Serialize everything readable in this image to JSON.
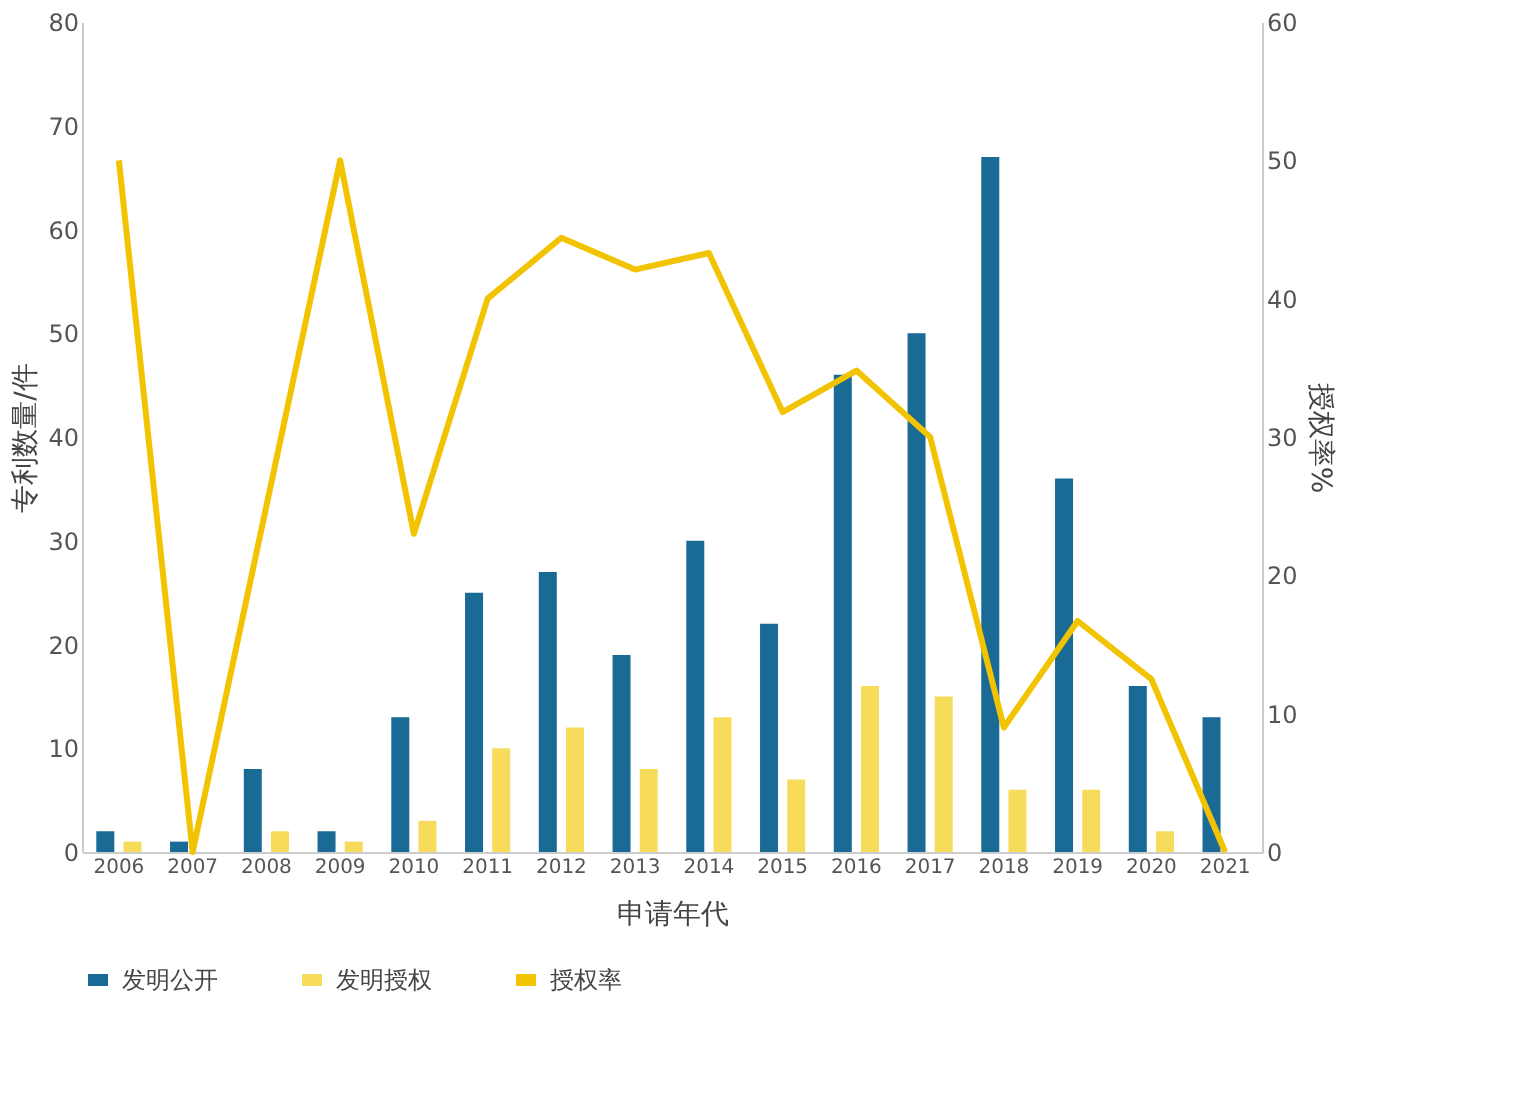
{
  "chart_data": {
    "type": "bar",
    "xlabel": "申请年代",
    "ylabel": "专利数量/件",
    "y2label": "授权率%",
    "categories": [
      "2006",
      "2007",
      "2008",
      "2009",
      "2010",
      "2011",
      "2012",
      "2013",
      "2014",
      "2015",
      "2016",
      "2017",
      "2018",
      "2019",
      "2020",
      "2021"
    ],
    "series": [
      {
        "name": "发明公开",
        "color": "#1a6a96",
        "values": [
          2,
          1,
          8,
          2,
          13,
          25,
          27,
          19,
          30,
          22,
          46,
          50,
          67,
          36,
          16,
          13
        ]
      },
      {
        "name": "发明授权",
        "color": "#f7dc5c",
        "values": [
          1,
          0,
          2,
          1,
          3,
          10,
          12,
          8,
          13,
          7,
          16,
          15,
          6,
          6,
          2,
          0
        ]
      },
      {
        "name": "授权率",
        "type": "line",
        "axis": "y2",
        "color": "#f2c300",
        "values": [
          50,
          0,
          25,
          50,
          23,
          40,
          44.4,
          42.1,
          43.3,
          31.8,
          34.8,
          30,
          9,
          16.7,
          12.5,
          0
        ]
      }
    ],
    "ylim": [
      0,
      80
    ],
    "yticks": [
      0,
      10,
      20,
      30,
      40,
      50,
      60,
      70,
      80
    ],
    "y2lim": [
      0,
      60
    ],
    "y2ticks": [
      0,
      10,
      20,
      30,
      40,
      50,
      60
    ],
    "grid": false,
    "legend": "bottom"
  }
}
